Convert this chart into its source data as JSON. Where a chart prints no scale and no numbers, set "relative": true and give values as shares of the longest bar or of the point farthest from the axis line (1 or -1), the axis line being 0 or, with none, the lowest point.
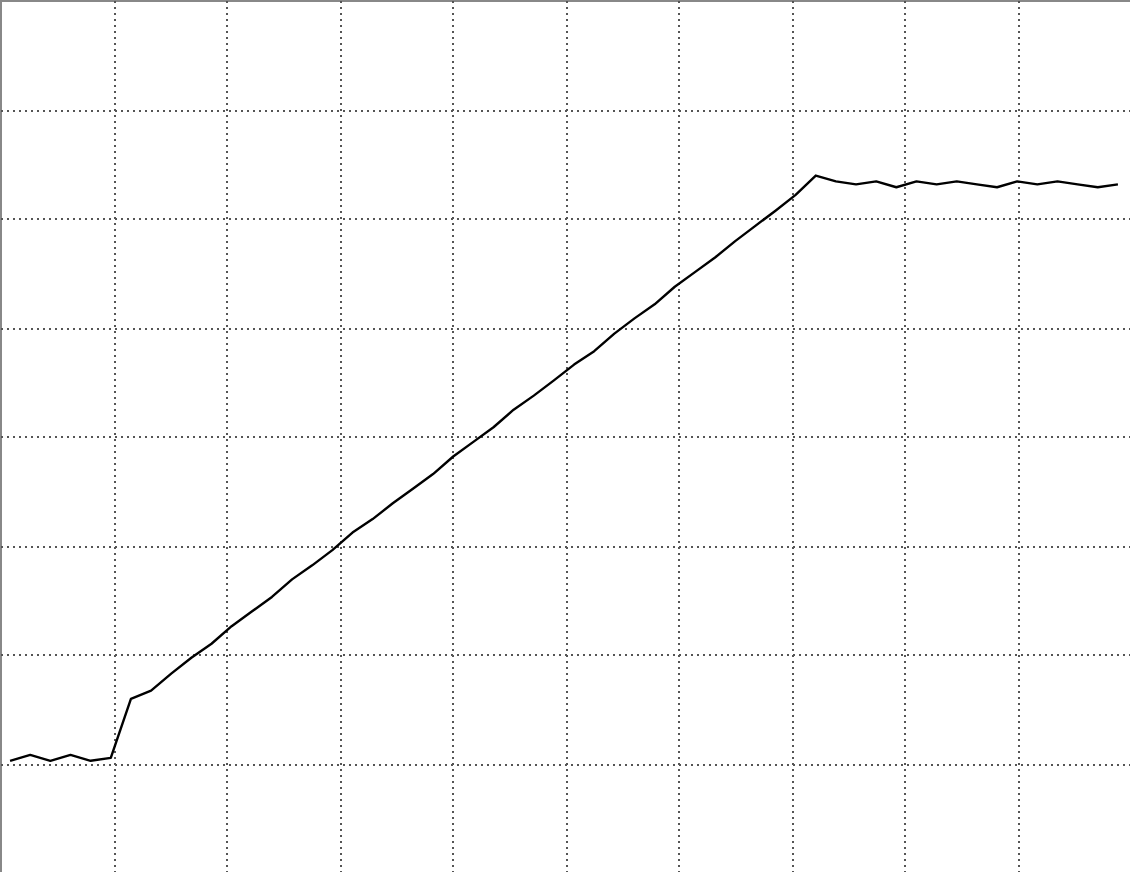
{
  "chart_data": {
    "type": "line",
    "relative": true,
    "grid": true,
    "tick_labels": false,
    "categories": [
      null,
      null,
      null,
      null,
      null,
      null,
      null,
      null,
      null,
      null,
      null,
      null,
      null,
      null,
      null,
      null,
      null,
      null,
      null,
      null,
      null,
      null,
      null,
      null,
      null,
      null,
      null,
      null,
      null,
      null,
      null,
      null,
      null,
      null,
      null,
      null,
      null,
      null,
      null,
      null,
      null,
      null,
      null,
      null,
      null,
      null,
      null,
      null,
      null,
      null,
      null,
      null,
      null,
      null,
      null,
      null
    ],
    "series": [
      {
        "color": "#000000",
        "values": [
          0,
          0.01,
          0,
          0.01,
          0,
          0.005,
          0.106,
          0.12,
          0.149,
          0.176,
          0.2,
          0.23,
          0.255,
          0.28,
          0.31,
          0.334,
          0.36,
          0.39,
          0.413,
          0.44,
          0.465,
          0.49,
          0.52,
          0.545,
          0.57,
          0.6,
          0.624,
          0.65,
          0.677,
          0.7,
          0.73,
          0.756,
          0.78,
          0.81,
          0.835,
          0.86,
          0.888,
          0.914,
          0.94,
          0.967,
          1,
          0.99,
          0.985,
          0.99,
          0.98,
          0.99,
          0.985,
          0.99,
          0.985,
          0.98,
          0.99,
          0.985,
          0.99,
          0.985,
          0.98,
          0.985
        ]
      }
    ]
  }
}
